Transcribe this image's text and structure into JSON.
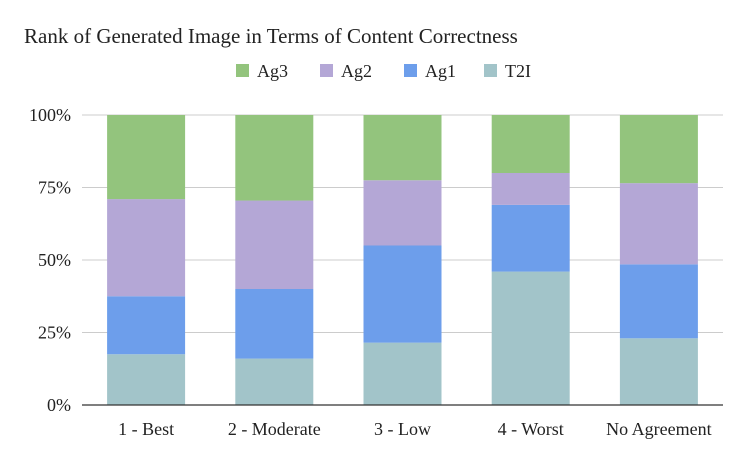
{
  "chart_data": {
    "type": "bar",
    "stacked": true,
    "percent": true,
    "title": "Rank of Generated Image in Terms of Content Correctness",
    "categories": [
      "1 - Best",
      "2 - Moderate",
      "3 - Low",
      "4 - Worst",
      "No Agreement"
    ],
    "series": [
      {
        "name": "T2I",
        "color": "#a2c4c9",
        "values": [
          17.5,
          16,
          21.5,
          46,
          23
        ]
      },
      {
        "name": "Ag1",
        "color": "#6d9eeb",
        "values": [
          20,
          24,
          33.5,
          23,
          25.5
        ]
      },
      {
        "name": "Ag2",
        "color": "#b4a7d6",
        "values": [
          33.5,
          30.5,
          22.5,
          11,
          28
        ]
      },
      {
        "name": "Ag3",
        "color": "#93c47d",
        "values": [
          29,
          29.5,
          22.5,
          20,
          23.5
        ]
      }
    ],
    "legend_order": [
      "Ag3",
      "Ag2",
      "Ag1",
      "T2I"
    ],
    "legend_position": "top",
    "y_ticks": [
      "0%",
      "25%",
      "50%",
      "75%",
      "100%"
    ],
    "ylim": [
      0,
      100
    ],
    "grid": true
  }
}
